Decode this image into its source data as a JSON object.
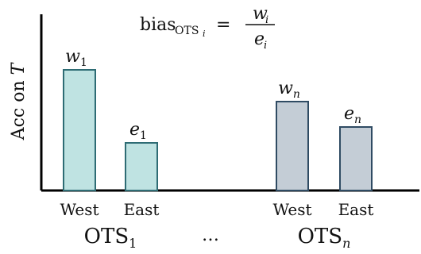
{
  "chart_data": {
    "type": "bar",
    "title": "",
    "ylabel": "Acc on T",
    "xlabel": "",
    "ylim": [
      0,
      100
    ],
    "groups": [
      {
        "name": "OTS",
        "subscript": "1",
        "bars": [
          {
            "category": "West",
            "label": "w",
            "label_sub": "1",
            "value": 76,
            "color": "#bfe3e2",
            "stroke": "#2e6c74"
          },
          {
            "category": "East",
            "label": "e",
            "label_sub": "1",
            "value": 30,
            "color": "#bfe3e2",
            "stroke": "#2e6c74"
          }
        ]
      },
      {
        "name": "OTS",
        "subscript": "n",
        "bars": [
          {
            "category": "West",
            "label": "w",
            "label_sub": "n",
            "value": 56,
            "color": "#c4cdd6",
            "stroke": "#2f4b63"
          },
          {
            "category": "East",
            "label": "e",
            "label_sub": "n",
            "value": 40,
            "color": "#c4cdd6",
            "stroke": "#2f4b63"
          }
        ]
      }
    ],
    "ellipsis": "…",
    "formula": {
      "lhs": "bias",
      "lhs_sub": "OTS",
      "lhs_subsub": "i",
      "equals": "=",
      "numerator": "w",
      "numerator_sub": "i",
      "denominator": "e",
      "denominator_sub": "i"
    },
    "grid": false,
    "legend": "none"
  }
}
